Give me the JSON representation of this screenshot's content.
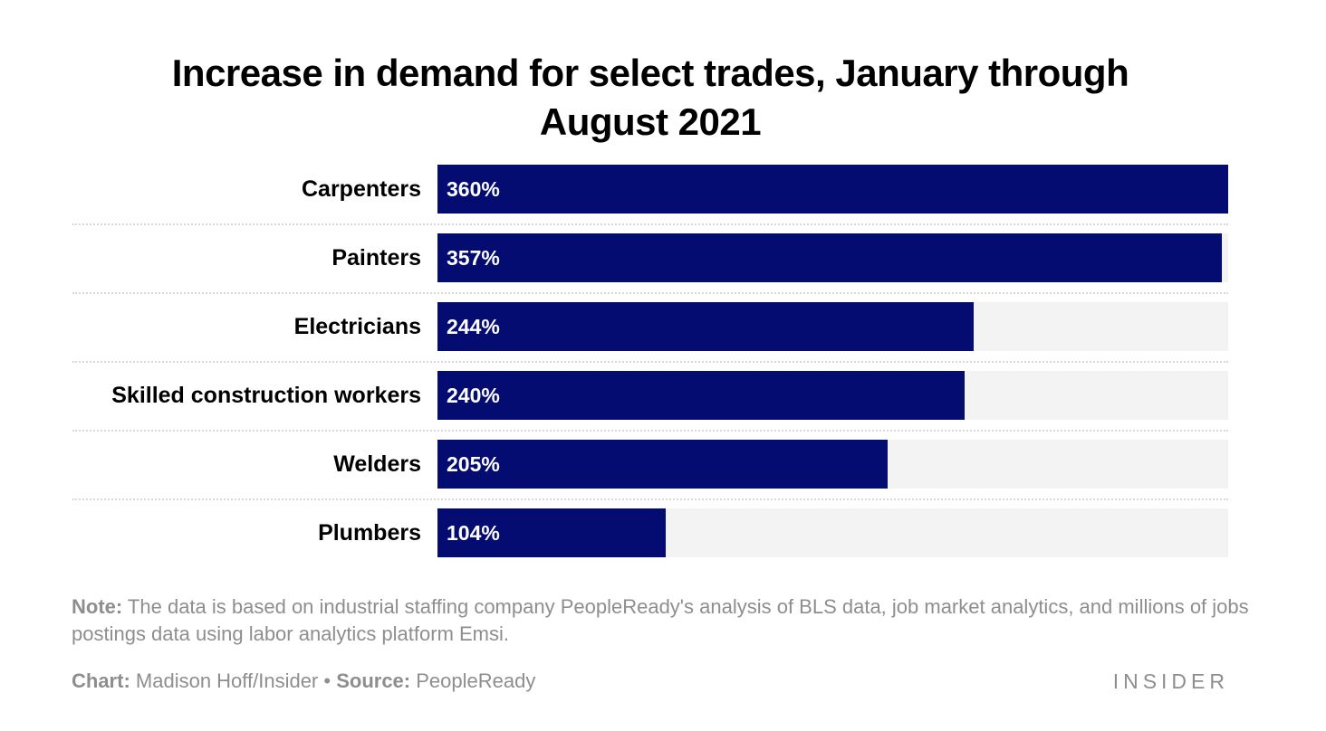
{
  "chart_data": {
    "type": "bar",
    "orientation": "horizontal",
    "title": "Increase in demand for select trades, January through August 2021",
    "categories": [
      "Carpenters",
      "Painters",
      "Electricians",
      "Skilled construction workers",
      "Welders",
      "Plumbers"
    ],
    "values": [
      360,
      357,
      244,
      240,
      205,
      104
    ],
    "value_labels": [
      "360%",
      "357%",
      "244%",
      "240%",
      "205%",
      "104%"
    ],
    "xlim": [
      0,
      360
    ],
    "grid": false,
    "colors": {
      "bar": "#040c72",
      "track": "#f3f3f3",
      "value_text": "#ffffff"
    }
  },
  "title_lines": [
    "Increase in demand for select trades, January through",
    "August 2021"
  ],
  "footer": {
    "note_label": "Note:",
    "note_text": " The data is based on industrial staffing company PeopleReady's analysis of BLS data, job market analytics, and millions of jobs postings data using labor analytics platform Emsi.",
    "chart_label": "Chart:",
    "chart_text": " Madison Hoff/Insider",
    "separator": " • ",
    "source_label": "Source:",
    "source_text": " PeopleReady",
    "logo": "INSIDER"
  }
}
